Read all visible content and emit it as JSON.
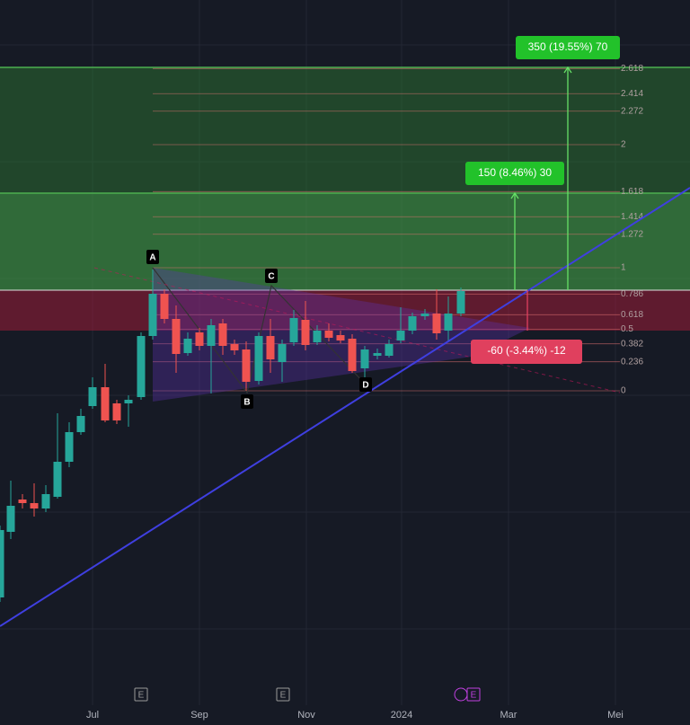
{
  "points": [
    "A",
    "B",
    "C",
    "D"
  ],
  "fib_levels": [
    2.618,
    2.414,
    2.272,
    2,
    1.618,
    1.414,
    1.272,
    1,
    0.786,
    0.618,
    0.5,
    0.382,
    0.236,
    0
  ],
  "annotations": {
    "target_2": "350 (19.55%) 70",
    "target_1": "150 (8.46%) 30",
    "stop": "-60 (-3.44%) -12"
  },
  "x_axis_labels": [
    "Jul",
    "Sep",
    "Nov",
    "2024",
    "Mar",
    "Mei"
  ],
  "event_badges": [
    "E",
    "E",
    "E"
  ]
}
